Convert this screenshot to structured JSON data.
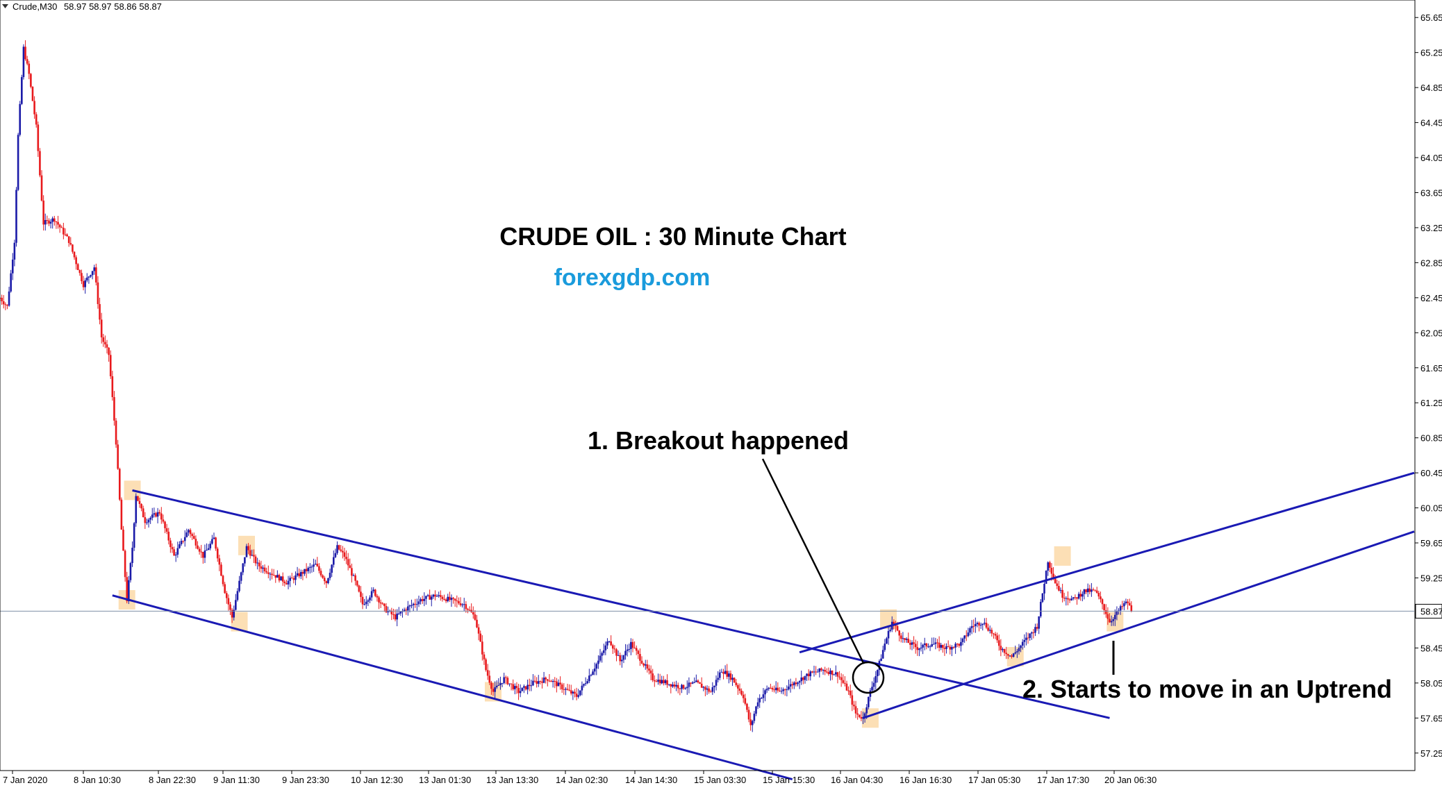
{
  "header": {
    "symbol": "Crude,M30",
    "ohlc": "58.97 58.97 58.86 58.87"
  },
  "title": "CRUDE OIL : 30 Minute Chart",
  "brand": "forexgdp.com",
  "annotations": {
    "breakout": "1. Breakout happened",
    "uptrend": "2. Starts to move in an Uptrend"
  },
  "current_price": {
    "label": "58.87",
    "value": 58.87,
    "color": "#1a1aa8"
  },
  "colors": {
    "bull": "#1a1aa8",
    "bear": "#e8191c",
    "channel": "#1a1ab4",
    "highlight": "#fbd9a8",
    "brand": "#1a9bdc",
    "price_line": "#7f8fa6"
  },
  "chart_data": {
    "type": "candlestick",
    "instrument": "Crude",
    "timeframe": "M30",
    "ylim": [
      57.05,
      65.85
    ],
    "y_ticks": [
      "65.65",
      "65.25",
      "64.85",
      "64.45",
      "64.05",
      "63.65",
      "63.25",
      "62.85",
      "62.45",
      "62.05",
      "61.65",
      "61.25",
      "60.85",
      "60.45",
      "60.05",
      "59.65",
      "59.25",
      "58.87",
      "58.45",
      "58.05",
      "57.65",
      "57.25"
    ],
    "x_ticks": [
      "7 Jan 2020",
      "8 Jan 10:30",
      "8 Jan 22:30",
      "9 Jan 11:30",
      "9 Jan 23:30",
      "10 Jan 12:30",
      "13 Jan 01:30",
      "13 Jan 13:30",
      "14 Jan 02:30",
      "14 Jan 14:30",
      "15 Jan 03:30",
      "15 Jan 15:30",
      "16 Jan 04:30",
      "16 Jan 16:30",
      "17 Jan 05:30",
      "17 Jan 17:30",
      "20 Jan 06:30"
    ],
    "price_path": [
      {
        "x": 0,
        "p": 62.45
      },
      {
        "x": 4,
        "p": 62.35
      },
      {
        "x": 8,
        "p": 63.1
      },
      {
        "x": 10,
        "p": 64.3
      },
      {
        "x": 13,
        "p": 65.3
      },
      {
        "x": 16,
        "p": 65.0
      },
      {
        "x": 20,
        "p": 64.4
      },
      {
        "x": 24,
        "p": 63.3
      },
      {
        "x": 30,
        "p": 63.35
      },
      {
        "x": 38,
        "p": 63.1
      },
      {
        "x": 46,
        "p": 62.6
      },
      {
        "x": 52,
        "p": 62.8
      },
      {
        "x": 56,
        "p": 62.0
      },
      {
        "x": 60,
        "p": 61.8
      },
      {
        "x": 64,
        "p": 60.8
      },
      {
        "x": 67,
        "p": 59.8
      },
      {
        "x": 70,
        "p": 59.0
      },
      {
        "x": 73,
        "p": 59.6
      },
      {
        "x": 75,
        "p": 60.2
      },
      {
        "x": 80,
        "p": 59.9
      },
      {
        "x": 88,
        "p": 60.0
      },
      {
        "x": 96,
        "p": 59.5
      },
      {
        "x": 104,
        "p": 59.8
      },
      {
        "x": 112,
        "p": 59.5
      },
      {
        "x": 118,
        "p": 59.7
      },
      {
        "x": 124,
        "p": 59.1
      },
      {
        "x": 128,
        "p": 58.8
      },
      {
        "x": 132,
        "p": 59.2
      },
      {
        "x": 136,
        "p": 59.6
      },
      {
        "x": 142,
        "p": 59.4
      },
      {
        "x": 150,
        "p": 59.3
      },
      {
        "x": 158,
        "p": 59.2
      },
      {
        "x": 166,
        "p": 59.3
      },
      {
        "x": 174,
        "p": 59.4
      },
      {
        "x": 180,
        "p": 59.2
      },
      {
        "x": 186,
        "p": 59.6
      },
      {
        "x": 190,
        "p": 59.5
      },
      {
        "x": 196,
        "p": 59.2
      },
      {
        "x": 200,
        "p": 58.95
      },
      {
        "x": 206,
        "p": 59.1
      },
      {
        "x": 212,
        "p": 58.9
      },
      {
        "x": 218,
        "p": 58.8
      },
      {
        "x": 224,
        "p": 58.9
      },
      {
        "x": 232,
        "p": 59.0
      },
      {
        "x": 240,
        "p": 59.05
      },
      {
        "x": 248,
        "p": 59.0
      },
      {
        "x": 256,
        "p": 58.95
      },
      {
        "x": 262,
        "p": 58.8
      },
      {
        "x": 268,
        "p": 58.2
      },
      {
        "x": 272,
        "p": 57.95
      },
      {
        "x": 278,
        "p": 58.1
      },
      {
        "x": 286,
        "p": 57.95
      },
      {
        "x": 294,
        "p": 58.05
      },
      {
        "x": 302,
        "p": 58.1
      },
      {
        "x": 310,
        "p": 58.0
      },
      {
        "x": 318,
        "p": 57.9
      },
      {
        "x": 324,
        "p": 58.1
      },
      {
        "x": 330,
        "p": 58.3
      },
      {
        "x": 336,
        "p": 58.55
      },
      {
        "x": 342,
        "p": 58.3
      },
      {
        "x": 348,
        "p": 58.5
      },
      {
        "x": 354,
        "p": 58.3
      },
      {
        "x": 360,
        "p": 58.1
      },
      {
        "x": 368,
        "p": 58.05
      },
      {
        "x": 376,
        "p": 58.0
      },
      {
        "x": 384,
        "p": 58.05
      },
      {
        "x": 392,
        "p": 57.95
      },
      {
        "x": 398,
        "p": 58.2
      },
      {
        "x": 404,
        "p": 58.1
      },
      {
        "x": 410,
        "p": 57.9
      },
      {
        "x": 414,
        "p": 57.55
      },
      {
        "x": 418,
        "p": 57.85
      },
      {
        "x": 424,
        "p": 58.0
      },
      {
        "x": 430,
        "p": 57.95
      },
      {
        "x": 438,
        "p": 58.05
      },
      {
        "x": 446,
        "p": 58.15
      },
      {
        "x": 454,
        "p": 58.2
      },
      {
        "x": 462,
        "p": 58.15
      },
      {
        "x": 468,
        "p": 57.95
      },
      {
        "x": 472,
        "p": 57.7
      },
      {
        "x": 476,
        "p": 57.65
      },
      {
        "x": 480,
        "p": 57.95
      },
      {
        "x": 484,
        "p": 58.2
      },
      {
        "x": 488,
        "p": 58.5
      },
      {
        "x": 492,
        "p": 58.75
      },
      {
        "x": 498,
        "p": 58.55
      },
      {
        "x": 506,
        "p": 58.45
      },
      {
        "x": 514,
        "p": 58.5
      },
      {
        "x": 522,
        "p": 58.45
      },
      {
        "x": 530,
        "p": 58.5
      },
      {
        "x": 536,
        "p": 58.7
      },
      {
        "x": 542,
        "p": 58.75
      },
      {
        "x": 548,
        "p": 58.6
      },
      {
        "x": 552,
        "p": 58.45
      },
      {
        "x": 558,
        "p": 58.35
      },
      {
        "x": 562,
        "p": 58.45
      },
      {
        "x": 568,
        "p": 58.6
      },
      {
        "x": 572,
        "p": 58.7
      },
      {
        "x": 578,
        "p": 59.45
      },
      {
        "x": 582,
        "p": 59.2
      },
      {
        "x": 586,
        "p": 59.05
      },
      {
        "x": 592,
        "p": 59.0
      },
      {
        "x": 598,
        "p": 59.1
      },
      {
        "x": 604,
        "p": 59.1
      },
      {
        "x": 608,
        "p": 58.95
      },
      {
        "x": 612,
        "p": 58.75
      },
      {
        "x": 616,
        "p": 58.85
      },
      {
        "x": 620,
        "p": 58.95
      },
      {
        "x": 622,
        "p": 58.97
      },
      {
        "x": 624,
        "p": 58.87
      }
    ],
    "x_range": [
      0,
      780
    ],
    "channels": [
      {
        "name": "descending-upper",
        "points": [
          [
            73,
            60.25
          ],
          [
            612,
            57.65
          ]
        ]
      },
      {
        "name": "descending-lower",
        "points": [
          [
            62,
            59.05
          ],
          [
            437,
            56.95
          ]
        ]
      },
      {
        "name": "ascending-upper",
        "points": [
          [
            441,
            58.4
          ],
          [
            780,
            60.45
          ]
        ]
      },
      {
        "name": "ascending-lower",
        "points": [
          [
            476,
            57.65
          ],
          [
            780,
            59.78
          ]
        ]
      }
    ]
  }
}
